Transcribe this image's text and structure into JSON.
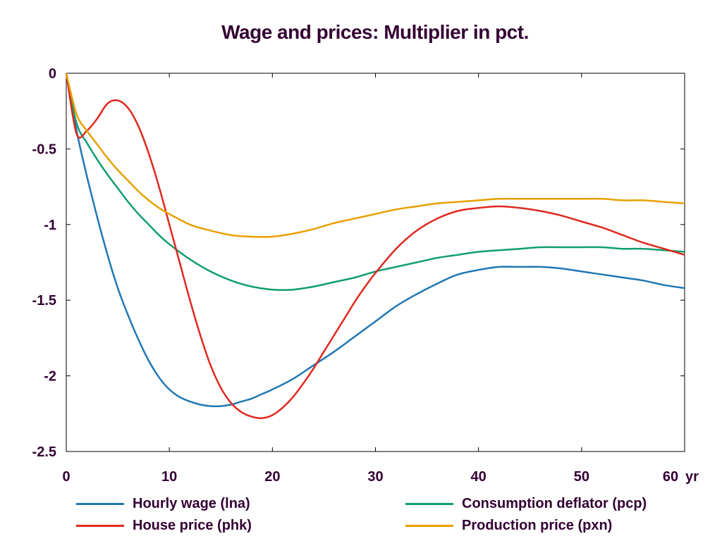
{
  "chart_data": {
    "type": "line",
    "title": "Wage and prices: Multiplier in pct.",
    "xlabel": "",
    "ylabel": "",
    "x_unit_label": "yr",
    "xlim": [
      0,
      60
    ],
    "ylim": [
      -2.5,
      0
    ],
    "x_ticks": [
      0,
      10,
      20,
      30,
      40,
      50,
      60
    ],
    "x_tick_labels": [
      "0",
      "10",
      "20",
      "30",
      "40",
      "50",
      "60"
    ],
    "y_ticks": [
      0,
      -0.5,
      -1,
      -1.5,
      -2,
      -2.5
    ],
    "y_tick_labels": [
      "0",
      "-0.5",
      "-1",
      "-1.5",
      "-2",
      "-2.5"
    ],
    "grid": false,
    "legend_position": "bottom",
    "series": [
      {
        "name": "Hourly wage (lna)",
        "color": "#1f77b4",
        "x": [
          0,
          1,
          2,
          3,
          4,
          5,
          6,
          7,
          8,
          9,
          10,
          11,
          12,
          13,
          14,
          15,
          16,
          17,
          18,
          19,
          20,
          22,
          24,
          26,
          28,
          30,
          32,
          34,
          36,
          38,
          40,
          42,
          44,
          46,
          48,
          50,
          52,
          54,
          56,
          58,
          60
        ],
        "y": [
          0,
          -0.38,
          -0.68,
          -0.95,
          -1.2,
          -1.42,
          -1.6,
          -1.76,
          -1.9,
          -2.01,
          -2.09,
          -2.14,
          -2.17,
          -2.19,
          -2.2,
          -2.2,
          -2.19,
          -2.17,
          -2.15,
          -2.12,
          -2.09,
          -2.02,
          -1.93,
          -1.84,
          -1.74,
          -1.64,
          -1.54,
          -1.46,
          -1.39,
          -1.33,
          -1.3,
          -1.28,
          -1.28,
          -1.28,
          -1.29,
          -1.31,
          -1.33,
          -1.35,
          -1.37,
          -1.4,
          -1.42
        ]
      },
      {
        "name": "Consumption deflator (pcp)",
        "color": "#109e6e",
        "x": [
          0,
          1,
          2,
          3,
          4,
          5,
          6,
          7,
          8,
          9,
          10,
          12,
          14,
          16,
          18,
          20,
          22,
          24,
          26,
          28,
          30,
          32,
          34,
          36,
          38,
          40,
          42,
          44,
          46,
          48,
          50,
          52,
          54,
          56,
          58,
          60
        ],
        "y": [
          0,
          -0.33,
          -0.46,
          -0.57,
          -0.67,
          -0.76,
          -0.85,
          -0.93,
          -1.0,
          -1.07,
          -1.13,
          -1.23,
          -1.31,
          -1.37,
          -1.41,
          -1.43,
          -1.43,
          -1.41,
          -1.38,
          -1.35,
          -1.31,
          -1.28,
          -1.25,
          -1.22,
          -1.2,
          -1.18,
          -1.17,
          -1.16,
          -1.15,
          -1.15,
          -1.15,
          -1.15,
          -1.16,
          -1.16,
          -1.17,
          -1.18
        ]
      },
      {
        "name": "House price (phk)",
        "color": "#e0281e",
        "x": [
          0,
          1,
          2,
          3,
          4,
          5,
          6,
          7,
          8,
          9,
          10,
          11,
          12,
          13,
          14,
          15,
          16,
          17,
          18,
          19,
          20,
          21,
          22,
          23,
          24,
          25,
          26,
          27,
          28,
          29,
          30,
          32,
          34,
          36,
          38,
          40,
          42,
          44,
          46,
          48,
          50,
          52,
          54,
          56,
          58,
          60
        ],
        "y": [
          0,
          -0.4,
          -0.38,
          -0.3,
          -0.2,
          -0.18,
          -0.23,
          -0.35,
          -0.53,
          -0.75,
          -1.0,
          -1.25,
          -1.5,
          -1.73,
          -1.93,
          -2.08,
          -2.18,
          -2.24,
          -2.27,
          -2.28,
          -2.26,
          -2.21,
          -2.14,
          -2.05,
          -1.95,
          -1.84,
          -1.73,
          -1.62,
          -1.51,
          -1.41,
          -1.32,
          -1.16,
          -1.04,
          -0.96,
          -0.91,
          -0.89,
          -0.88,
          -0.89,
          -0.91,
          -0.94,
          -0.98,
          -1.02,
          -1.07,
          -1.12,
          -1.16,
          -1.2
        ]
      },
      {
        "name": "Production price (pxn)",
        "color": "#e8a000",
        "x": [
          0,
          1,
          2,
          3,
          4,
          5,
          6,
          7,
          8,
          9,
          10,
          12,
          14,
          16,
          18,
          20,
          22,
          24,
          26,
          28,
          30,
          32,
          34,
          36,
          38,
          40,
          42,
          44,
          46,
          48,
          50,
          52,
          54,
          56,
          58,
          60
        ],
        "y": [
          0,
          -0.27,
          -0.38,
          -0.47,
          -0.56,
          -0.64,
          -0.71,
          -0.78,
          -0.84,
          -0.89,
          -0.93,
          -1.0,
          -1.04,
          -1.07,
          -1.08,
          -1.08,
          -1.06,
          -1.03,
          -0.99,
          -0.96,
          -0.93,
          -0.9,
          -0.88,
          -0.86,
          -0.85,
          -0.84,
          -0.83,
          -0.83,
          -0.83,
          -0.83,
          -0.83,
          -0.83,
          -0.84,
          -0.84,
          -0.85,
          -0.86
        ]
      }
    ]
  }
}
